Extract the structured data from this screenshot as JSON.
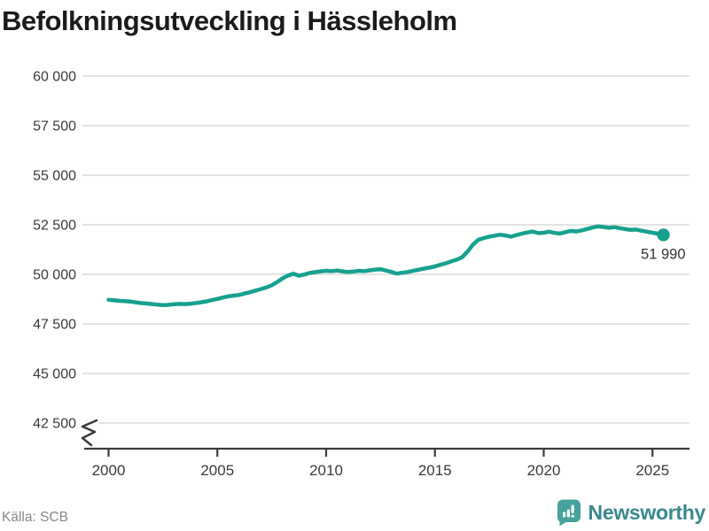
{
  "title": "Befolkningsutveckling i Hässleholm",
  "chart_data": {
    "type": "line",
    "title": "Befolkningsutveckling i Hässleholm",
    "xlabel": "",
    "ylabel": "",
    "grid": "horizontal",
    "legend": "none",
    "axis_break": true,
    "line_color": "#17a08f",
    "axis_color": "#3b3b3b",
    "grid_color": "#e3e3e3",
    "tick_label_color": "#3a3a3a",
    "ylim_displayed": [
      42500,
      60000
    ],
    "xlim": [
      1998.9,
      2026.7
    ],
    "yticks": {
      "values": [
        60000,
        57500,
        55000,
        52500,
        50000,
        47500,
        45000,
        42500
      ],
      "labels": [
        "60 000",
        "57 500",
        "55 000",
        "52 500",
        "50 000",
        "47 500",
        "45 000",
        "42 500"
      ]
    },
    "xticks": {
      "values": [
        2000,
        2005,
        2010,
        2015,
        2020,
        2025
      ],
      "labels": [
        "2000",
        "2005",
        "2010",
        "2015",
        "2020",
        "2025"
      ]
    },
    "series": [
      {
        "name": "Befolkning",
        "x_start": 2000,
        "x_step": 0.25,
        "values": [
          48720,
          48690,
          48660,
          48650,
          48630,
          48590,
          48550,
          48530,
          48500,
          48470,
          48450,
          48460,
          48490,
          48510,
          48500,
          48520,
          48550,
          48590,
          48640,
          48700,
          48760,
          48830,
          48890,
          48930,
          48960,
          49030,
          49100,
          49180,
          49260,
          49340,
          49450,
          49610,
          49800,
          49940,
          50030,
          49930,
          49990,
          50070,
          50110,
          50150,
          50180,
          50160,
          50190,
          50150,
          50120,
          50140,
          50180,
          50160,
          50200,
          50240,
          50260,
          50190,
          50120,
          50040,
          50080,
          50120,
          50180,
          50230,
          50290,
          50340,
          50400,
          50480,
          50560,
          50650,
          50740,
          50860,
          51150,
          51500,
          51750,
          51830,
          51900,
          51950,
          52000,
          51960,
          51900,
          51980,
          52060,
          52110,
          52160,
          52080,
          52100,
          52150,
          52090,
          52060,
          52130,
          52190,
          52160,
          52220,
          52290,
          52360,
          52420,
          52390,
          52350,
          52380,
          52330,
          52280,
          52240,
          52260,
          52200,
          52150,
          52100,
          52050,
          51990
        ]
      }
    ],
    "end_point": {
      "x": 2025.5,
      "value": 51990,
      "label": "51 990"
    }
  },
  "footer": {
    "source": "Källa: SCB",
    "brand": "Newsworthy"
  }
}
